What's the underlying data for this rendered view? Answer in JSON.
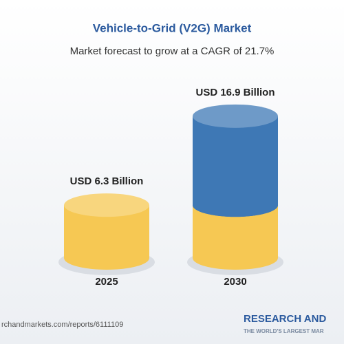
{
  "chart_data": {
    "type": "cylinder",
    "title": "Vehicle-to-Grid (V2G) Market",
    "subtitle": "Market forecast to grow at a CAGR of 21.7%",
    "categories": [
      "2025",
      "2030"
    ],
    "values": [
      6.3,
      16.9
    ],
    "value_labels": [
      "USD 6.3 Billion",
      "USD 16.9 Billion"
    ],
    "colors": [
      "#f6c853",
      "#3e78b5"
    ],
    "source": "rchandmarkets.com/reports/6111109",
    "logo": "RESEARCH AND",
    "tagline": "THE WORLD'S LARGEST MAR"
  }
}
